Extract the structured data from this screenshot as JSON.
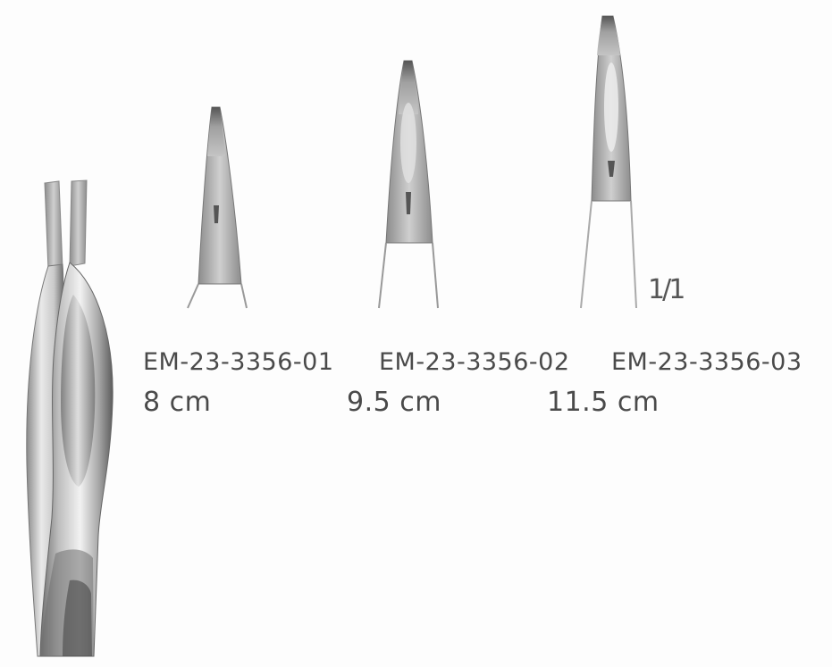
{
  "scale_mark": "1/1",
  "items": [
    {
      "code": "EM-23-3356-01",
      "size": "8 cm"
    },
    {
      "code": "EM-23-3356-02",
      "size": "9.5 cm"
    },
    {
      "code": "EM-23-3356-03",
      "size": "11.5 cm"
    }
  ],
  "colors": {
    "metal_light": "#e6e6e6",
    "metal_mid": "#b4b4b4",
    "metal_dark": "#555555",
    "text": "#4a4a4a"
  }
}
